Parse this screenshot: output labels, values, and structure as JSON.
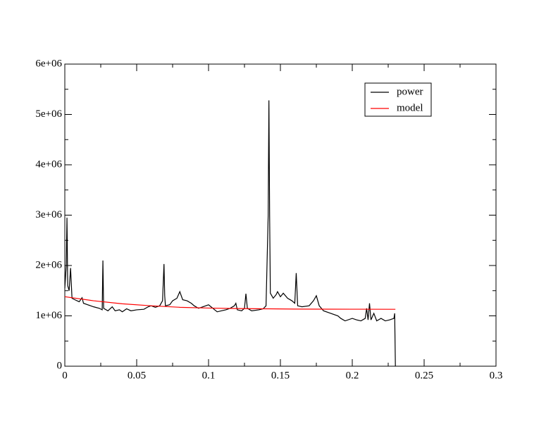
{
  "chart_data": {
    "type": "line",
    "series": [
      {
        "name": "power",
        "color": "#000000",
        "x": [
          0.0,
          0.001,
          0.0015,
          0.002,
          0.003,
          0.004,
          0.005,
          0.007,
          0.01,
          0.012,
          0.013,
          0.016,
          0.02,
          0.024,
          0.026,
          0.0265,
          0.027,
          0.03,
          0.033,
          0.035,
          0.038,
          0.04,
          0.043,
          0.046,
          0.05,
          0.055,
          0.058,
          0.06,
          0.063,
          0.066,
          0.068,
          0.069,
          0.0695,
          0.07,
          0.073,
          0.075,
          0.078,
          0.08,
          0.082,
          0.085,
          0.088,
          0.09,
          0.093,
          0.096,
          0.1,
          0.103,
          0.106,
          0.109,
          0.112,
          0.115,
          0.118,
          0.119,
          0.12,
          0.123,
          0.125,
          0.126,
          0.127,
          0.13,
          0.135,
          0.138,
          0.14,
          0.1415,
          0.142,
          0.1425,
          0.143,
          0.145,
          0.147,
          0.148,
          0.15,
          0.152,
          0.155,
          0.158,
          0.16,
          0.161,
          0.162,
          0.165,
          0.17,
          0.173,
          0.175,
          0.177,
          0.18,
          0.185,
          0.19,
          0.192,
          0.195,
          0.2,
          0.203,
          0.206,
          0.209,
          0.21,
          0.211,
          0.212,
          0.213,
          0.215,
          0.217,
          0.22,
          0.223,
          0.226,
          0.229,
          0.2295,
          0.23
        ],
        "values": [
          1550000,
          2000000,
          2950000,
          1600000,
          1500000,
          1950000,
          1350000,
          1320000,
          1280000,
          1360000,
          1250000,
          1220000,
          1180000,
          1150000,
          1120000,
          2100000,
          1150000,
          1100000,
          1180000,
          1100000,
          1120000,
          1080000,
          1140000,
          1100000,
          1120000,
          1130000,
          1180000,
          1200000,
          1170000,
          1200000,
          1300000,
          2030000,
          1400000,
          1200000,
          1220000,
          1300000,
          1350000,
          1480000,
          1320000,
          1300000,
          1250000,
          1200000,
          1150000,
          1180000,
          1220000,
          1150000,
          1080000,
          1100000,
          1120000,
          1150000,
          1200000,
          1250000,
          1120000,
          1100000,
          1150000,
          1440000,
          1150000,
          1100000,
          1120000,
          1140000,
          1200000,
          3000000,
          5280000,
          3000000,
          1450000,
          1350000,
          1420000,
          1480000,
          1380000,
          1450000,
          1350000,
          1300000,
          1250000,
          1850000,
          1200000,
          1180000,
          1200000,
          1300000,
          1400000,
          1200000,
          1100000,
          1050000,
          1000000,
          950000,
          900000,
          950000,
          920000,
          900000,
          950000,
          1150000,
          920000,
          1250000,
          920000,
          1050000,
          900000,
          950000,
          900000,
          920000,
          950000,
          1050000,
          0
        ]
      },
      {
        "name": "model",
        "color": "#ff0000",
        "x": [
          0.0,
          0.02,
          0.04,
          0.06,
          0.08,
          0.1,
          0.12,
          0.14,
          0.16,
          0.18,
          0.2,
          0.23
        ],
        "values": [
          1380000,
          1300000,
          1240000,
          1200000,
          1170000,
          1155000,
          1145000,
          1140000,
          1135000,
          1133000,
          1132000,
          1130000
        ]
      }
    ],
    "xlim": [
      0,
      0.3
    ],
    "ylim": [
      0,
      6000000
    ],
    "xticks": [
      0,
      0.05,
      0.1,
      0.15,
      0.2,
      0.25,
      0.3
    ],
    "yticks": [
      0,
      {
        "value": 1000000,
        "label": "1e+06"
      },
      {
        "value": 2000000,
        "label": "2e+06"
      },
      {
        "value": 3000000,
        "label": "3e+06"
      },
      {
        "value": 4000000,
        "label": "4e+06"
      },
      {
        "value": 5000000,
        "label": "5e+06"
      },
      {
        "value": 6000000,
        "label": "6e+06"
      }
    ],
    "xminorticks": [
      0.025,
      0.075,
      0.125,
      0.175,
      0.225,
      0.275
    ],
    "yminorticks": [
      500000,
      1500000,
      2500000,
      3500000,
      4500000,
      5500000
    ],
    "legend": "upper right"
  }
}
